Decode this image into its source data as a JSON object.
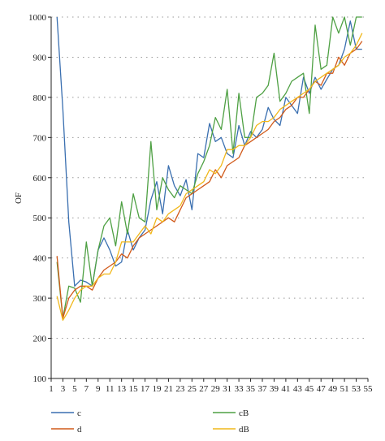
{
  "chart_data": {
    "type": "line",
    "title": "",
    "xlabel": "",
    "ylabel": "OF",
    "xlim": [
      1,
      55
    ],
    "ylim": [
      100,
      1000
    ],
    "y_ticks": [
      100,
      200,
      300,
      400,
      500,
      600,
      700,
      800,
      900,
      1000
    ],
    "x_ticks": [
      1,
      3,
      5,
      7,
      9,
      11,
      13,
      15,
      17,
      19,
      21,
      23,
      25,
      27,
      29,
      31,
      33,
      35,
      37,
      39,
      41,
      43,
      45,
      47,
      49,
      51,
      53,
      55
    ],
    "grid": "horizontal-dotted",
    "legend_position": "bottom",
    "x": [
      2,
      3,
      4,
      5,
      6,
      7,
      8,
      9,
      10,
      11,
      12,
      13,
      14,
      15,
      16,
      17,
      18,
      19,
      20,
      21,
      22,
      23,
      24,
      25,
      26,
      27,
      28,
      29,
      30,
      31,
      32,
      33,
      34,
      35,
      36,
      37,
      38,
      39,
      40,
      41,
      42,
      43,
      44,
      45,
      46,
      47,
      48,
      49,
      50,
      51,
      52,
      53,
      54
    ],
    "series": [
      {
        "name": "c",
        "color": "#3a6fb0",
        "values": [
          1000,
          770,
          490,
          330,
          345,
          340,
          330,
          420,
          450,
          420,
          380,
          390,
          470,
          420,
          450,
          470,
          545,
          590,
          510,
          630,
          580,
          555,
          595,
          520,
          660,
          650,
          735,
          690,
          700,
          660,
          650,
          730,
          680,
          715,
          700,
          720,
          775,
          745,
          730,
          800,
          780,
          760,
          850,
          810,
          850,
          820,
          845,
          870,
          880,
          920,
          990,
          920,
          920
        ]
      },
      {
        "name": "cB",
        "color": "#4ea043",
        "values": [
          390,
          250,
          330,
          325,
          290,
          440,
          330,
          420,
          480,
          500,
          430,
          540,
          460,
          560,
          500,
          490,
          690,
          520,
          600,
          570,
          550,
          580,
          570,
          560,
          610,
          640,
          680,
          750,
          720,
          820,
          660,
          810,
          700,
          700,
          800,
          810,
          830,
          910,
          790,
          810,
          840,
          850,
          860,
          760,
          980,
          870,
          880,
          1000,
          960,
          1000,
          930,
          1000,
          1000
        ]
      },
      {
        "name": "d",
        "color": "#d15a1a",
        "values": [
          405,
          250,
          300,
          320,
          330,
          330,
          320,
          350,
          370,
          380,
          390,
          410,
          400,
          430,
          450,
          460,
          470,
          480,
          490,
          500,
          490,
          520,
          550,
          560,
          570,
          580,
          590,
          620,
          600,
          630,
          640,
          650,
          680,
          690,
          700,
          710,
          720,
          740,
          750,
          770,
          780,
          800,
          800,
          820,
          840,
          830,
          860,
          860,
          900,
          880,
          910,
          920,
          940
        ]
      },
      {
        "name": "dB",
        "color": "#f1b81a",
        "values": [
          305,
          245,
          270,
          300,
          320,
          330,
          330,
          350,
          360,
          360,
          390,
          440,
          440,
          440,
          460,
          480,
          460,
          500,
          490,
          510,
          520,
          530,
          560,
          570,
          580,
          590,
          620,
          610,
          630,
          670,
          670,
          680,
          680,
          700,
          730,
          740,
          740,
          750,
          770,
          780,
          790,
          800,
          810,
          820,
          840,
          850,
          860,
          870,
          880,
          900,
          910,
          930,
          960
        ]
      }
    ]
  }
}
